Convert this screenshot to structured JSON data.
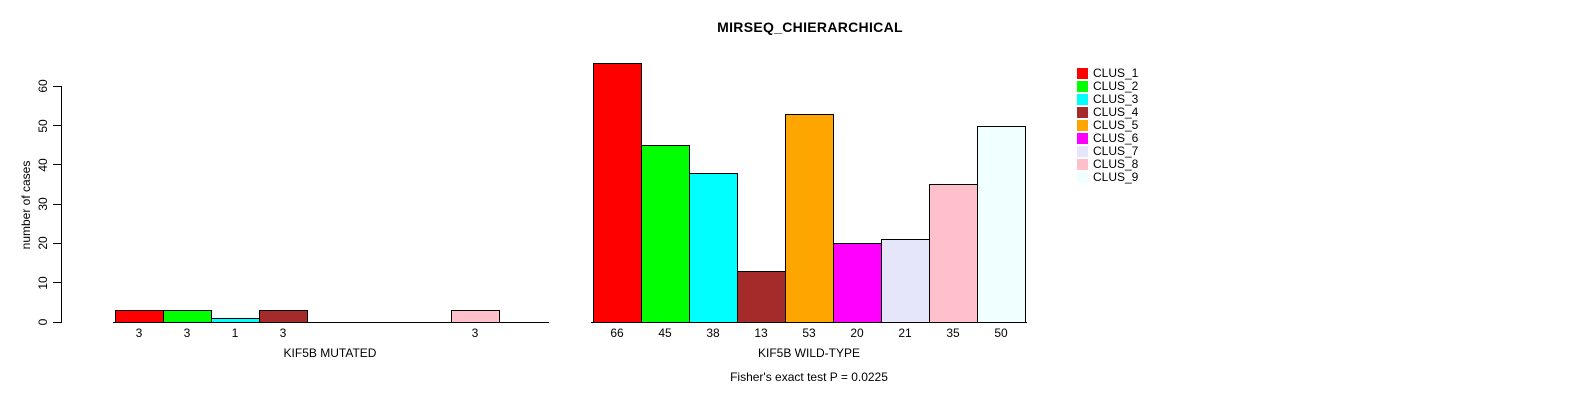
{
  "title": "MIRSEQ_CHIERARCHICAL",
  "annotation": "Fisher's exact test P = 0.0225",
  "chart_data": {
    "type": "bar",
    "title": "MIRSEQ_CHIERARCHICAL",
    "ylabel": "number of cases",
    "ylim": [
      0,
      60
    ],
    "yticks": [
      "0",
      "10",
      "20",
      "30",
      "40",
      "50",
      "60"
    ],
    "grid": false,
    "legend_position": "right",
    "categories": [
      "CLUS_1",
      "CLUS_2",
      "CLUS_3",
      "CLUS_4",
      "CLUS_5",
      "CLUS_6",
      "CLUS_7",
      "CLUS_8",
      "CLUS_9"
    ],
    "colors": [
      "#FF0000",
      "#00FF00",
      "#00FFFF",
      "#A52A2A",
      "#FFA500",
      "#FF00FF",
      "#E6E6FA",
      "#FFC0CB",
      "#F0FFFF"
    ],
    "panels": [
      {
        "xlabel": "KIF5B MUTATED",
        "values": [
          3,
          3,
          1,
          3,
          0,
          0,
          0,
          3,
          0
        ],
        "bar_labels": [
          "3",
          "3",
          "1",
          "3",
          "",
          "",
          "",
          "3",
          ""
        ]
      },
      {
        "xlabel": "KIF5B WILD-TYPE",
        "values": [
          66,
          45,
          38,
          13,
          53,
          20,
          21,
          35,
          50
        ],
        "bar_labels": [
          "66",
          "45",
          "38",
          "13",
          "53",
          "20",
          "21",
          "35",
          "50"
        ]
      }
    ],
    "annotation": "Fisher's exact test P = 0.0225"
  },
  "legend": {
    "entries": [
      {
        "label": "CLUS_1",
        "color": "#FF0000"
      },
      {
        "label": "CLUS_2",
        "color": "#00FF00"
      },
      {
        "label": "CLUS_3",
        "color": "#00FFFF"
      },
      {
        "label": "CLUS_4",
        "color": "#A52A2A"
      },
      {
        "label": "CLUS_5",
        "color": "#FFA500"
      },
      {
        "label": "CLUS_6",
        "color": "#FF00FF"
      },
      {
        "label": "CLUS_7",
        "color": "#E6E6FA"
      },
      {
        "label": "CLUS_8",
        "color": "#FFC0CB"
      },
      {
        "label": "CLUS_9",
        "color": "#F0FFFF"
      }
    ]
  }
}
